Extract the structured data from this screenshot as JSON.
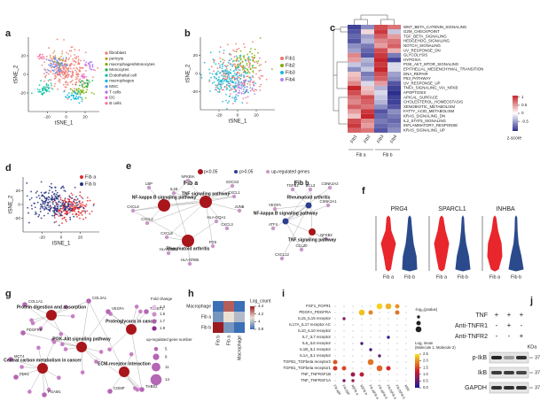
{
  "figure": {
    "a": {
      "label": "a",
      "x_label": "tSNE_1",
      "y_label": "tSNE_2",
      "xlim": [
        -40,
        35
      ],
      "ylim": [
        -40,
        40
      ],
      "xticks": [
        -20,
        0,
        20
      ],
      "yticks": [
        -20,
        0,
        20
      ],
      "legend": [
        {
          "name": "fibroblast",
          "color": "#f07a6e"
        },
        {
          "name": "pericyte",
          "color": "#c09a20"
        },
        {
          "name": "macrophages/Monocytes",
          "color": "#7cae00"
        },
        {
          "name": "Monocytes",
          "color": "#1fb34a"
        },
        {
          "name": "Endothelial cell",
          "color": "#00bfa0"
        },
        {
          "name": "macrophages",
          "color": "#00b4e0"
        },
        {
          "name": "MSC",
          "color": "#5f8cff"
        },
        {
          "name": "T cells",
          "color": "#b06cf0"
        },
        {
          "name": "DC",
          "color": "#ee5fd6"
        },
        {
          "name": "B cells",
          "color": "#ff68a0"
        }
      ]
    },
    "b": {
      "label": "b",
      "x_label": "tSNE_1",
      "y_label": "tSNE_2",
      "xlim": [
        -40,
        40
      ],
      "ylim": [
        -40,
        40
      ],
      "xticks": [
        -20,
        0,
        20
      ],
      "yticks": [
        -20,
        0,
        20
      ],
      "legend": [
        {
          "name": "Fib1",
          "color": "#f0726a"
        },
        {
          "name": "Fib2",
          "color": "#7cae00"
        },
        {
          "name": "Fib3",
          "color": "#16b7d0"
        },
        {
          "name": "Fib4",
          "color": "#b77ff0"
        }
      ]
    },
    "c": {
      "label": "c",
      "rows": [
        "WNT_BETA_CATENIN_SIGNALING",
        "G2M_CHECKPOINT",
        "TGF_BETA_SIGNALING",
        "HEDGEHOG_SIGNALING",
        "NOTCH_SIGNALING",
        "UV_RESPONSE_DN",
        "GLYCOLYSIS",
        "HYPOXIA",
        "PI3K_AKT_MTOR_SIGNALING",
        "EPITHELIAL_MESENCHYMAL_TRANSITION",
        "DNA_REPAIR",
        "P53_PATHWAY",
        "UV_RESPONSE_UP",
        "TNFA_SIGNALING_VIA_NFKB",
        "APOPTOSIS",
        "APICAL_SURFACE",
        "CHOLESTEROL_HOMEOSTASIS",
        "XENOBIOTIC_METABOLISM",
        "FATTY_ACID_METABOLISM",
        "KRAS_SIGNALING_DN",
        "IL2_STAT5_SIGNALING",
        "INFLAMMATORY_RESPONSE",
        "KRAS_SIGNALING_UP"
      ],
      "columns": [
        "Fib1",
        "Fib2",
        "Fib3",
        "Fib4"
      ],
      "groups": [
        "Fib a",
        "Fib b"
      ],
      "values": [
        [
          -1.0,
          -0.6,
          0.9,
          0.7
        ],
        [
          -0.9,
          0.2,
          1.0,
          -0.3
        ],
        [
          -0.8,
          -0.5,
          0.8,
          0.5
        ],
        [
          -0.9,
          -0.4,
          0.6,
          0.7
        ],
        [
          -0.6,
          -0.7,
          0.5,
          0.8
        ],
        [
          -0.5,
          -0.8,
          0.9,
          0.4
        ],
        [
          0.6,
          -0.9,
          1.0,
          -0.7
        ],
        [
          0.5,
          -0.4,
          1.1,
          -1.0
        ],
        [
          -0.3,
          -0.5,
          1.0,
          -0.2
        ],
        [
          -0.6,
          -0.3,
          1.1,
          -0.2
        ],
        [
          0.3,
          -0.7,
          0.9,
          -0.5
        ],
        [
          0.4,
          -0.6,
          0.8,
          -0.6
        ],
        [
          0.6,
          -0.2,
          0.5,
          -0.9
        ],
        [
          1.1,
          0.3,
          -0.4,
          -1.0
        ],
        [
          0.9,
          0.4,
          -0.2,
          -1.1
        ],
        [
          0.7,
          0.9,
          -0.3,
          -1.0
        ],
        [
          0.6,
          0.8,
          -0.4,
          -1.0
        ],
        [
          0.8,
          0.7,
          -0.6,
          -0.9
        ],
        [
          0.5,
          1.0,
          -0.9,
          -0.6
        ],
        [
          0.3,
          1.1,
          -0.8,
          -0.7
        ],
        [
          0.9,
          0.6,
          -0.7,
          -0.8
        ],
        [
          1.0,
          0.5,
          -0.8,
          -0.7
        ],
        [
          0.8,
          0.7,
          -0.9,
          -0.6
        ]
      ],
      "colorbar_ticks": [
        1,
        0.5,
        0,
        -0.5
      ],
      "colorbar_title": "z-score"
    },
    "d": {
      "label": "d",
      "x_label": "tSNE_1",
      "y_label": "tSNE_2",
      "xlim": [
        -40,
        40
      ],
      "ylim": [
        -40,
        40
      ],
      "xticks": [
        -20,
        0,
        20
      ],
      "yticks": [
        -20,
        0,
        20
      ],
      "legend": [
        {
          "name": "Fib a",
          "color": "#e4262c"
        },
        {
          "name": "Fib b",
          "color": "#23307e"
        }
      ]
    },
    "e": {
      "label": "e",
      "legend": [
        {
          "name": "p<0.05",
          "color": "#a8151b"
        },
        {
          "name": "p>0.05",
          "color": "#2c3e8f"
        },
        {
          "name": "up-regulated genes",
          "color": "#c998c8"
        }
      ],
      "networks": [
        {
          "title": "Fib a",
          "pathways": [
            {
              "name": "NF-kappa B signaling pathway",
              "significant": true
            },
            {
              "name": "TNF signaling pathway",
              "significant": true
            },
            {
              "name": "Rheumatoid arthritis",
              "significant": true
            }
          ],
          "genes": [
            "LBP",
            "NFKBIA",
            "IL1B",
            "HLA-DQA1",
            "SOCS3",
            "CXCL1",
            "JUNB",
            "CXCL3",
            "CXCL2",
            "CXCL8",
            "CXCL6",
            "FOS",
            "HLA-DRB1",
            "HLA-DRB5"
          ]
        },
        {
          "title": "Fib b",
          "pathways": [
            {
              "name": "Rheumatoid arthritis",
              "significant": false
            },
            {
              "name": "NF-kappa B signaling pathway",
              "significant": false
            },
            {
              "name": "TNF signaling pathway",
              "significant": true
            }
          ],
          "genes": [
            "TGFB1",
            "BCL3",
            "CSNK2A2",
            "VEGFA",
            "CSNK2A1",
            "ATF4",
            "NFKB2",
            "CCL20",
            "CXCL12"
          ]
        }
      ]
    },
    "f": {
      "label": "f",
      "genes": [
        "PRG4",
        "SPARCL1",
        "INHBA"
      ],
      "groups": [
        "Fib a",
        "Fib b"
      ],
      "colors": [
        "#e8262b",
        "#2b4a8c"
      ]
    },
    "g": {
      "label": "g",
      "pathways": [
        "Protein digestion and absorption",
        "PI3K-Akt signaling pathway",
        "Proteoglycans in cancer",
        "Central carbon metabolism in cancer",
        "ECM-receptor interaction"
      ],
      "genes": [
        "COL1A1",
        "COL3A1",
        "VEGFA",
        "TWIST1",
        "PDGFRB",
        "MCT4",
        "PDK1",
        "PGAM1",
        "THBS2",
        "COMP"
      ],
      "fold_change_title": "Fold change",
      "fold_change_ticks": [
        1.3,
        1.5,
        1.7,
        1.9
      ],
      "gene_number_title": "up-regulated gene number",
      "gene_number_ticks": [
        5,
        8,
        11,
        14
      ]
    },
    "h": {
      "label": "h",
      "rows": [
        "Macrophage",
        "Fib a",
        "Fib b"
      ],
      "columns": [
        "Fib b",
        "Fib a",
        "Macrophage"
      ],
      "values": [
        [
          3.8,
          4.3,
          3.7
        ],
        [
          3.9,
          4.1,
          4.0
        ],
        [
          4.4,
          3.9,
          3.8
        ]
      ],
      "legend_title": "Log_count",
      "legend_ticks": [
        4.4,
        4.2,
        4,
        3.8
      ]
    },
    "i": {
      "label": "i",
      "rows": [
        "FGF1_FGFR1",
        "PDGFA_PDGFRA",
        "IL15_IL15 receptor",
        "IL17A_IL17 receptor AC",
        "IL10_IL10 receptor",
        "IL7_IL7 receptor",
        "IL6_IL6 receptor",
        "IL1B_IL1 receptor",
        "IL1A_IL1 receptor",
        "TGFB1_TGFbeta receptor2",
        "TGFB1_TGFbeta receptor1",
        "TNF_TNFRSF1B",
        "TNF_TNFRSF1A"
      ],
      "columns": [
        "Fib a|M",
        "Fib b|M",
        "M|Fib a",
        "M|Fib b",
        "Fib a|Fib a",
        "Fib a|Fib b",
        "Fib b|Fib a",
        "Fib b|Fib b",
        "M|M"
      ],
      "dots": [
        {
          "row": 0,
          "col": 5,
          "mean": 2.4,
          "neglog10p": 3
        },
        {
          "row": 0,
          "col": 6,
          "mean": 2.2,
          "neglog10p": 3
        },
        {
          "row": 0,
          "col": 7,
          "mean": 2.0,
          "neglog10p": 2
        },
        {
          "row": 1,
          "col": 3,
          "mean": 2.3,
          "neglog10p": 3
        },
        {
          "row": 1,
          "col": 4,
          "mean": 1.9,
          "neglog10p": 2
        },
        {
          "row": 1,
          "col": 7,
          "mean": 1.8,
          "neglog10p": 2
        },
        {
          "row": 2,
          "col": 1,
          "mean": 0.7,
          "neglog10p": 1
        },
        {
          "row": 5,
          "col": 6,
          "mean": 0.2,
          "neglog10p": 1
        },
        {
          "row": 6,
          "col": 3,
          "mean": 0.4,
          "neglog10p": 1
        },
        {
          "row": 7,
          "col": 4,
          "mean": 0.3,
          "neglog10p": 1
        },
        {
          "row": 8,
          "col": 5,
          "mean": 0.5,
          "neglog10p": 1
        },
        {
          "row": 9,
          "col": 0,
          "mean": 1.6,
          "neglog10p": 2
        },
        {
          "row": 9,
          "col": 4,
          "mean": 1.8,
          "neglog10p": 3
        },
        {
          "row": 10,
          "col": 0,
          "mean": 1.4,
          "neglog10p": 2
        },
        {
          "row": 10,
          "col": 1,
          "mean": 1.5,
          "neglog10p": 2
        },
        {
          "row": 10,
          "col": 5,
          "mean": 1.7,
          "neglog10p": 3
        },
        {
          "row": 10,
          "col": 6,
          "mean": 1.3,
          "neglog10p": 2
        },
        {
          "row": 11,
          "col": 2,
          "mean": 0.9,
          "neglog10p": 2
        },
        {
          "row": 11,
          "col": 3,
          "mean": 1.1,
          "neglog10p": 2
        },
        {
          "row": 12,
          "col": 1,
          "mean": 0.6,
          "neglog10p": 1
        },
        {
          "row": 12,
          "col": 2,
          "mean": 0.8,
          "neglog10p": 1
        }
      ],
      "size_title": "-log₁₀(pvalue)",
      "color_title_lines": [
        "Log₂ mean",
        "(Molecule 1, Molecule 2)"
      ],
      "color_ticks": [
        2.5,
        {
          "value": 2,
          "label": "2.0"
        },
        1.5,
        {
          "value": 1,
          "label": "1.0"
        },
        0.5,
        {
          "value": 0,
          "label": "0.0"
        }
      ]
    },
    "j": {
      "label": "j",
      "treatments": [
        {
          "name": "TNF",
          "lanes": [
            "+",
            "+",
            "+"
          ]
        },
        {
          "name": "Anti-TNFR1",
          "lanes": [
            "-",
            "+",
            "-"
          ]
        },
        {
          "name": "Anti-TNFR2",
          "lanes": [
            "-",
            "-",
            "+"
          ]
        }
      ],
      "size_unit": "KDa",
      "blots": [
        {
          "name": "p-IkB",
          "size": "37"
        },
        {
          "name": "IkB",
          "size": "37"
        },
        {
          "name": "GAPDH",
          "size": "37"
        }
      ]
    }
  }
}
